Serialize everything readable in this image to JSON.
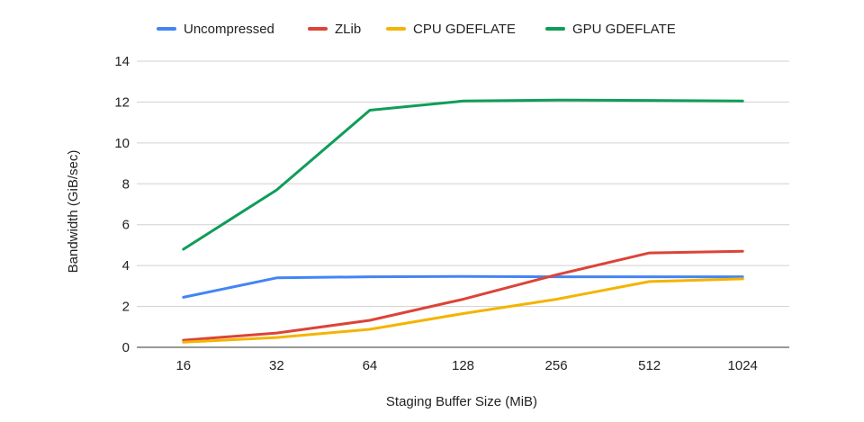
{
  "chart_data": {
    "type": "line",
    "title": "",
    "xlabel": "Staging Buffer Size (MiB)",
    "ylabel": "Bandwidth (GiB/sec)",
    "categories": [
      "16",
      "32",
      "64",
      "128",
      "256",
      "512",
      "1024"
    ],
    "ylim": [
      0,
      14
    ],
    "yticks": [
      "0",
      "2",
      "4",
      "6",
      "8",
      "10",
      "12",
      "14"
    ],
    "grid": true,
    "legend_position": "top",
    "series": [
      {
        "name": "Uncompressed",
        "color": "#4285f4",
        "values": [
          2.45,
          3.4,
          3.45,
          3.47,
          3.45,
          3.45,
          3.45
        ]
      },
      {
        "name": "ZLib",
        "color": "#db4437",
        "values": [
          0.35,
          0.7,
          1.32,
          2.35,
          3.55,
          4.62,
          4.7
        ]
      },
      {
        "name": "CPU GDEFLATE",
        "color": "#f4b400",
        "values": [
          0.25,
          0.48,
          0.88,
          1.65,
          2.35,
          3.22,
          3.35
        ]
      },
      {
        "name": "GPU GDEFLATE",
        "color": "#0f9d58",
        "values": [
          4.8,
          7.7,
          11.6,
          12.05,
          12.1,
          12.08,
          12.05
        ]
      }
    ]
  }
}
